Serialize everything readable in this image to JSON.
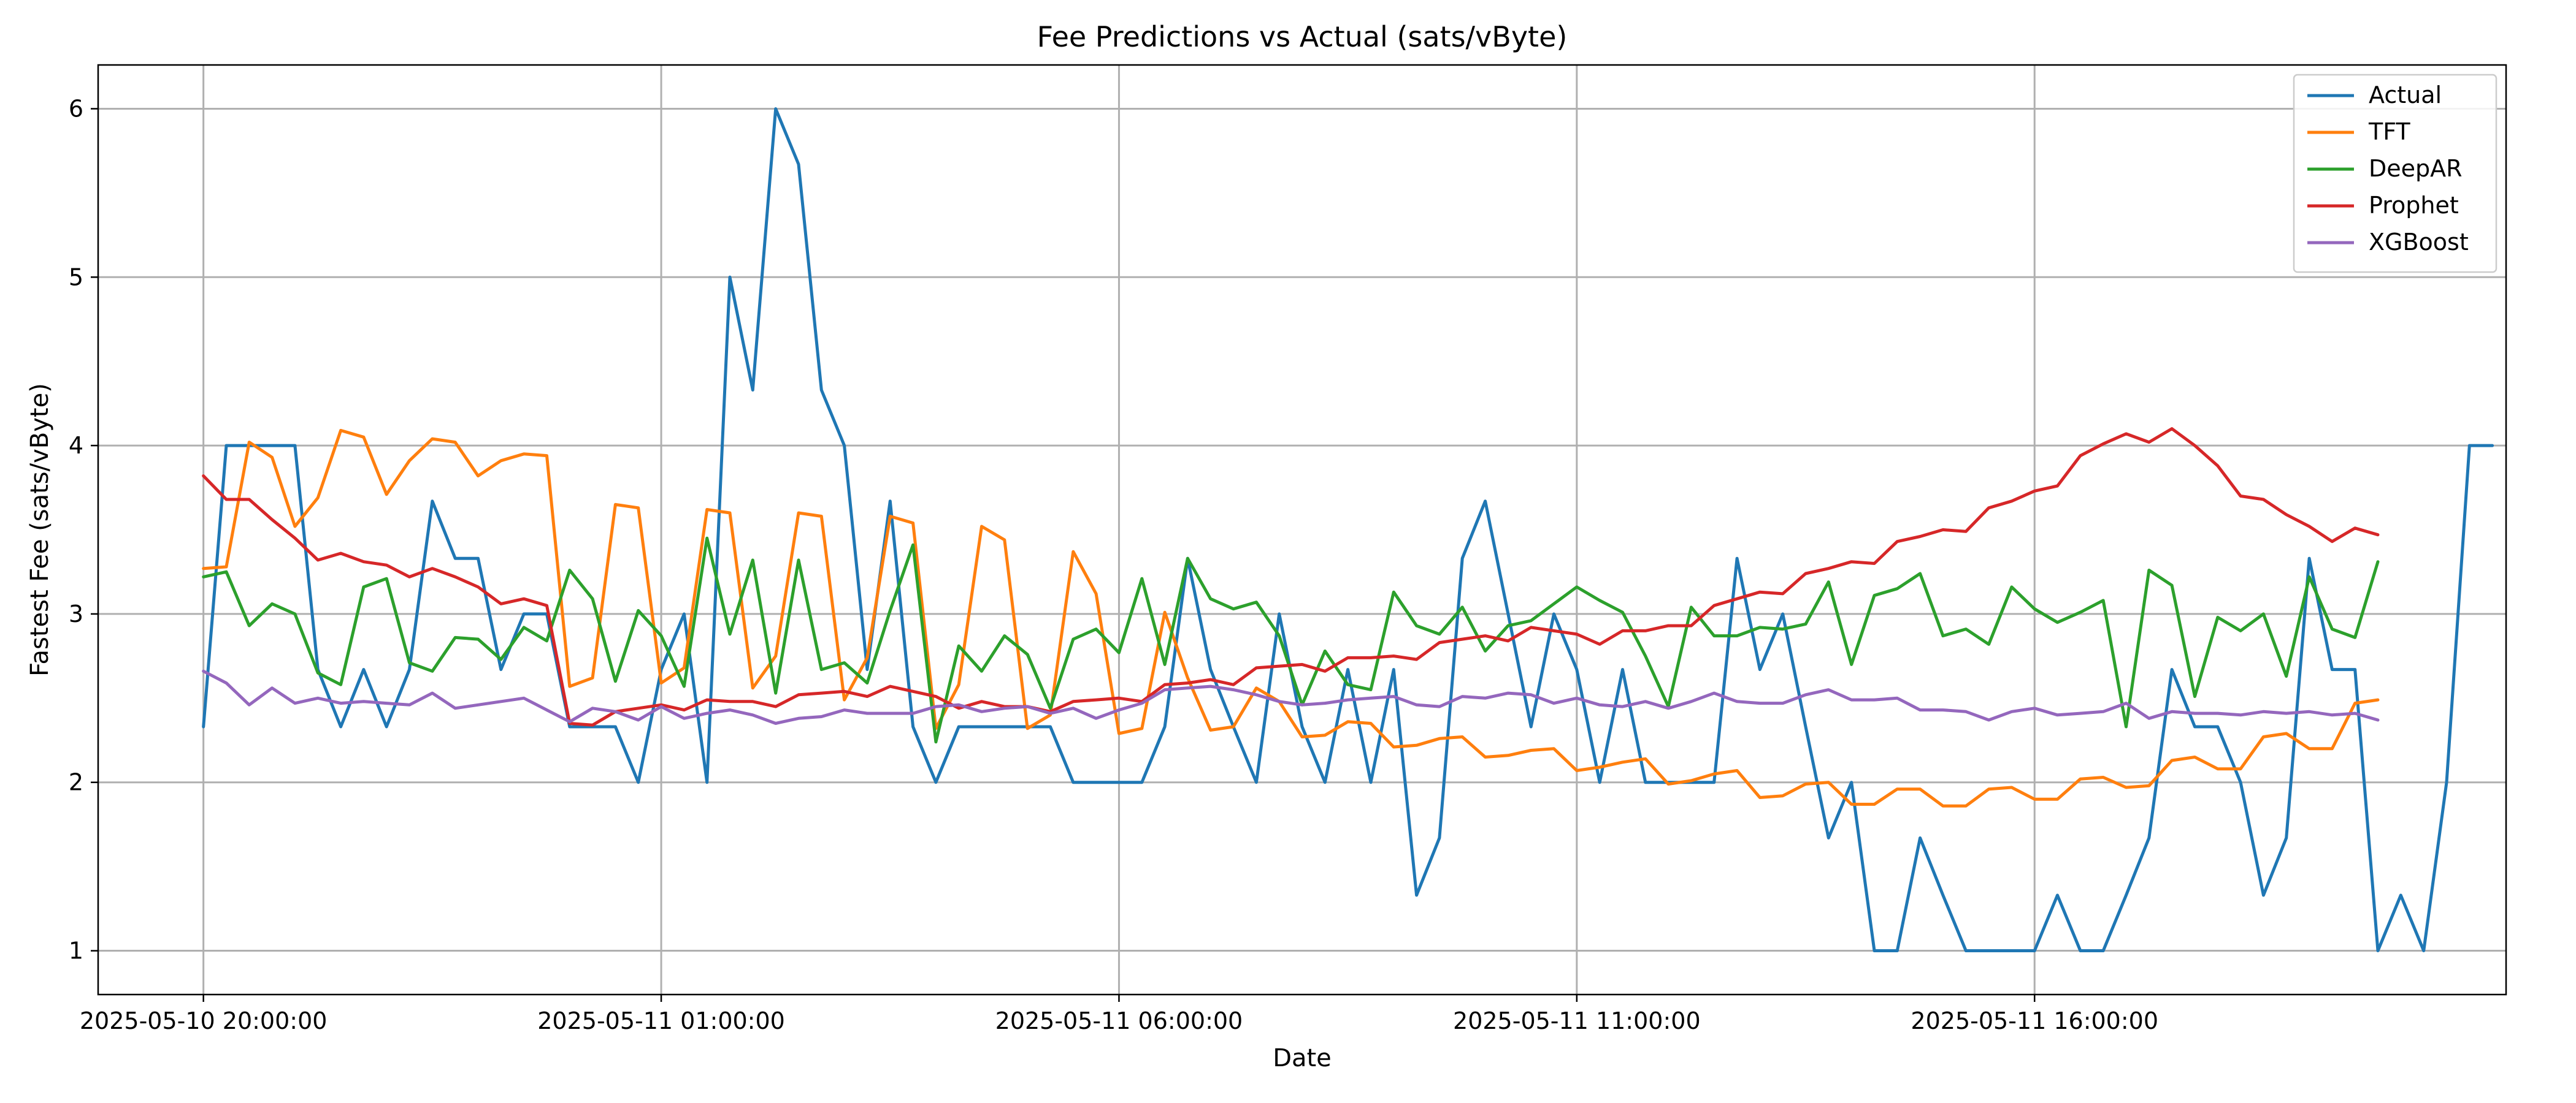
{
  "chart_data": {
    "type": "line",
    "title": "Fee Predictions vs Actual (sats/vByte)",
    "xlabel": "Date",
    "ylabel": "Fastest Fee (sats/vByte)",
    "x_axis": "datetime",
    "x_start": "2025-05-10 20:00:00",
    "x_step_minutes": 15,
    "xlim": [
      "2025-05-10 18:51:00",
      "2025-05-11 21:09:00"
    ],
    "ylim": [
      0.74,
      6.26
    ],
    "x_ticks": [
      "2025-05-10 20:00:00",
      "2025-05-11 01:00:00",
      "2025-05-11 06:00:00",
      "2025-05-11 11:00:00",
      "2025-05-11 16:00:00"
    ],
    "y_ticks": [
      1,
      2,
      3,
      4,
      5,
      6
    ],
    "grid": true,
    "legend_position": "top-right",
    "series": [
      {
        "name": "Actual",
        "color": "#1f77b4",
        "values": [
          2.33,
          4.0,
          4.0,
          4.0,
          4.0,
          2.67,
          2.33,
          2.67,
          2.33,
          2.67,
          3.67,
          3.33,
          3.33,
          2.67,
          3.0,
          3.0,
          2.33,
          2.33,
          2.33,
          2.0,
          2.67,
          3.0,
          2.0,
          5.0,
          4.33,
          6.0,
          5.67,
          4.33,
          4.0,
          2.67,
          3.67,
          2.33,
          2.0,
          2.33,
          2.33,
          2.33,
          2.33,
          2.33,
          2.0,
          2.0,
          2.0,
          2.0,
          2.33,
          3.33,
          2.67,
          2.33,
          2.0,
          3.0,
          2.33,
          2.0,
          2.67,
          2.0,
          2.67,
          1.33,
          1.67,
          3.33,
          3.67,
          3.0,
          2.33,
          3.0,
          2.67,
          2.0,
          2.67,
          2.0,
          2.0,
          2.0,
          2.0,
          3.33,
          2.67,
          3.0,
          2.33,
          1.67,
          2.0,
          1.0,
          1.0,
          1.67,
          1.33,
          1.0,
          1.0,
          1.0,
          1.0,
          1.33,
          1.0,
          1.0,
          1.33,
          1.67,
          2.67,
          2.33,
          2.33,
          2.0,
          1.33,
          1.67,
          3.33,
          2.67,
          2.67,
          1.0,
          1.33,
          1.0,
          2.0,
          4.0,
          4.0
        ]
      },
      {
        "name": "TFT",
        "color": "#ff7f0e",
        "values": [
          3.27,
          3.28,
          4.02,
          3.93,
          3.52,
          3.69,
          4.09,
          4.05,
          3.71,
          3.91,
          4.04,
          4.02,
          3.82,
          3.91,
          3.95,
          3.94,
          2.57,
          2.62,
          3.65,
          3.63,
          2.59,
          2.68,
          3.62,
          3.6,
          2.56,
          2.75,
          3.6,
          3.58,
          2.49,
          2.74,
          3.58,
          3.54,
          2.32,
          2.58,
          3.52,
          3.44,
          2.32,
          2.4,
          3.37,
          3.12,
          2.29,
          2.32,
          3.01,
          2.62,
          2.31,
          2.33,
          2.56,
          2.48,
          2.27,
          2.28,
          2.36,
          2.35,
          2.21,
          2.22,
          2.26,
          2.27,
          2.15,
          2.16,
          2.19,
          2.2,
          2.07,
          2.09,
          2.12,
          2.14,
          1.99,
          2.01,
          2.05,
          2.07,
          1.91,
          1.92,
          1.99,
          2.0,
          1.87,
          1.87,
          1.96,
          1.96,
          1.86,
          1.86,
          1.96,
          1.97,
          1.9,
          1.9,
          2.02,
          2.03,
          1.97,
          1.98,
          2.13,
          2.15,
          2.08,
          2.08,
          2.27,
          2.29,
          2.2,
          2.2,
          2.47,
          2.49
        ]
      },
      {
        "name": "DeepAR",
        "color": "#2ca02c",
        "values": [
          3.22,
          3.25,
          2.93,
          3.06,
          3.0,
          2.65,
          2.58,
          3.16,
          3.21,
          2.71,
          2.66,
          2.86,
          2.85,
          2.73,
          2.92,
          2.84,
          3.26,
          3.09,
          2.6,
          3.02,
          2.87,
          2.57,
          3.45,
          2.88,
          3.32,
          2.53,
          3.32,
          2.67,
          2.71,
          2.59,
          3.02,
          3.41,
          2.24,
          2.81,
          2.66,
          2.87,
          2.76,
          2.44,
          2.85,
          2.91,
          2.77,
          3.21,
          2.7,
          3.33,
          3.09,
          3.03,
          3.07,
          2.87,
          2.46,
          2.78,
          2.58,
          2.55,
          3.13,
          2.93,
          2.88,
          3.04,
          2.78,
          2.93,
          2.96,
          3.06,
          3.16,
          3.08,
          3.01,
          2.75,
          2.45,
          3.04,
          2.87,
          2.87,
          2.92,
          2.91,
          2.94,
          3.19,
          2.7,
          3.11,
          3.15,
          3.24,
          2.87,
          2.91,
          2.82,
          3.16,
          3.03,
          2.95,
          3.01,
          3.08,
          2.33,
          3.26,
          3.17,
          2.51,
          2.98,
          2.9,
          3.0,
          2.63,
          3.22,
          2.91,
          2.86,
          3.31
        ]
      },
      {
        "name": "Prophet",
        "color": "#d62728",
        "values": [
          3.82,
          3.68,
          3.68,
          3.56,
          3.45,
          3.32,
          3.36,
          3.31,
          3.29,
          3.22,
          3.27,
          3.22,
          3.16,
          3.06,
          3.09,
          3.05,
          2.35,
          2.34,
          2.42,
          2.44,
          2.46,
          2.43,
          2.49,
          2.48,
          2.48,
          2.45,
          2.52,
          2.53,
          2.54,
          2.51,
          2.57,
          2.54,
          2.51,
          2.44,
          2.48,
          2.45,
          2.45,
          2.42,
          2.48,
          2.49,
          2.5,
          2.48,
          2.58,
          2.59,
          2.61,
          2.58,
          2.68,
          2.69,
          2.7,
          2.66,
          2.74,
          2.74,
          2.75,
          2.73,
          2.83,
          2.85,
          2.87,
          2.84,
          2.92,
          2.9,
          2.88,
          2.82,
          2.9,
          2.9,
          2.93,
          2.93,
          3.05,
          3.09,
          3.13,
          3.12,
          3.24,
          3.27,
          3.31,
          3.3,
          3.43,
          3.46,
          3.5,
          3.49,
          3.63,
          3.67,
          3.73,
          3.76,
          3.94,
          4.01,
          4.07,
          4.02,
          4.1,
          4.0,
          3.88,
          3.7,
          3.68,
          3.59,
          3.52,
          3.43,
          3.51,
          3.47
        ]
      },
      {
        "name": "XGBoost",
        "color": "#9467bd",
        "values": [
          2.66,
          2.59,
          2.46,
          2.56,
          2.47,
          2.5,
          2.47,
          2.48,
          2.47,
          2.46,
          2.53,
          2.44,
          2.46,
          2.48,
          2.5,
          2.43,
          2.36,
          2.44,
          2.42,
          2.37,
          2.45,
          2.38,
          2.41,
          2.43,
          2.4,
          2.35,
          2.38,
          2.39,
          2.43,
          2.41,
          2.41,
          2.41,
          2.45,
          2.46,
          2.42,
          2.44,
          2.45,
          2.41,
          2.44,
          2.38,
          2.43,
          2.47,
          2.55,
          2.56,
          2.57,
          2.55,
          2.52,
          2.48,
          2.46,
          2.47,
          2.49,
          2.5,
          2.51,
          2.46,
          2.45,
          2.51,
          2.5,
          2.53,
          2.52,
          2.47,
          2.5,
          2.46,
          2.45,
          2.48,
          2.44,
          2.48,
          2.53,
          2.48,
          2.47,
          2.47,
          2.52,
          2.55,
          2.49,
          2.49,
          2.5,
          2.43,
          2.43,
          2.42,
          2.37,
          2.42,
          2.44,
          2.4,
          2.41,
          2.42,
          2.47,
          2.38,
          2.42,
          2.41,
          2.41,
          2.4,
          2.42,
          2.41,
          2.42,
          2.4,
          2.41,
          2.37
        ]
      }
    ]
  }
}
